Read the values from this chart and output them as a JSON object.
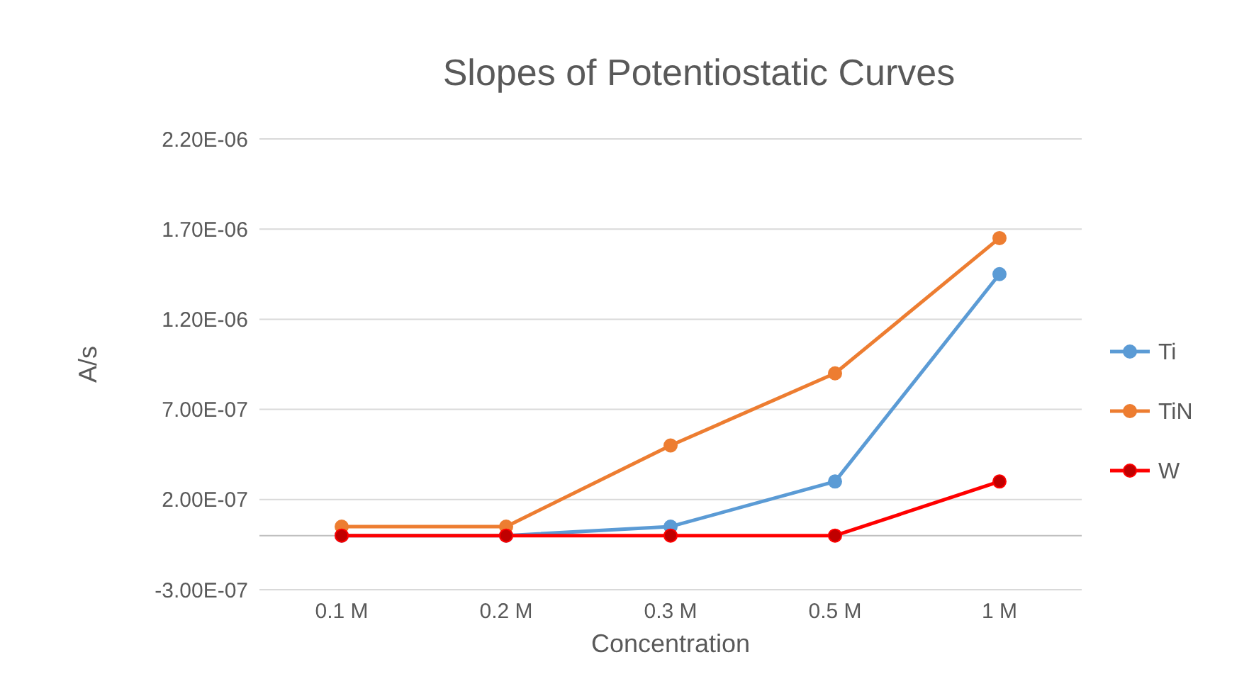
{
  "chart_data": {
    "type": "line",
    "title": "Slopes of Potentiostatic Curves",
    "xlabel": "Concentration",
    "ylabel": "A/s",
    "categories": [
      "0.1 M",
      "0.2 M",
      "0.3 M",
      "0.5 M",
      "1 M"
    ],
    "series": [
      {
        "name": "Ti",
        "color": "#5b9bd5",
        "values": [
          0,
          0,
          5e-08,
          3e-07,
          1.45e-06
        ]
      },
      {
        "name": "TiN",
        "color": "#ed7d31",
        "values": [
          5e-08,
          5e-08,
          5e-07,
          9e-07,
          1.65e-06
        ]
      },
      {
        "name": "W",
        "color": "#ff0000",
        "values": [
          0,
          0,
          0,
          0,
          3e-07
        ]
      }
    ],
    "ylim": [
      -3e-07,
      2.2e-06
    ],
    "yticks": [
      {
        "value": -3e-07,
        "label": "-3.00E-07"
      },
      {
        "value": 2e-07,
        "label": "2.00E-07"
      },
      {
        "value": 7e-07,
        "label": "7.00E-07"
      },
      {
        "value": 1.2e-06,
        "label": "1.20E-06"
      },
      {
        "value": 1.7e-06,
        "label": "1.70E-06"
      },
      {
        "value": 2.2e-06,
        "label": "2.20E-06"
      }
    ],
    "grid": "y",
    "legend": "right",
    "marker": "circle",
    "line_style": "solid"
  }
}
